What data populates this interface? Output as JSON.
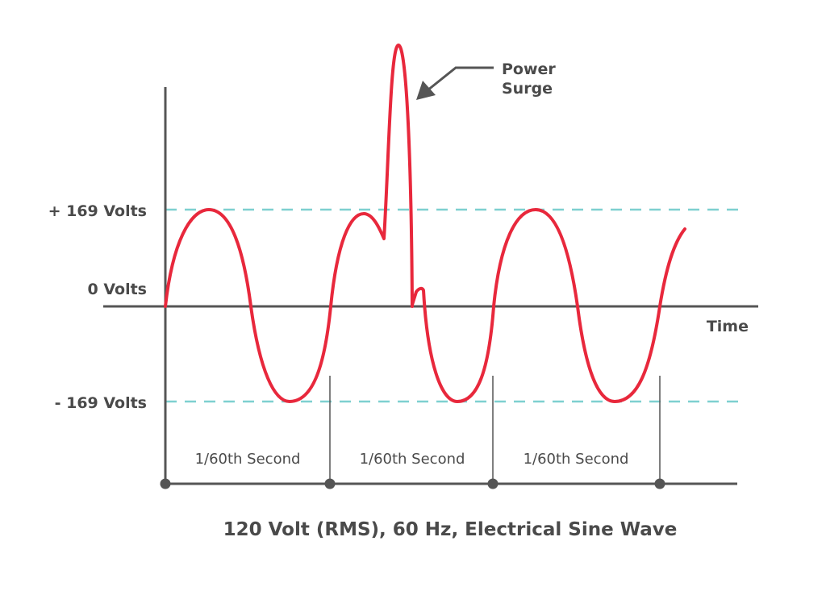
{
  "title": "120 Volt (RMS), 60 Hz, Electrical Sine Wave",
  "levels": {
    "positive_peak": "+ 169 Volts",
    "zero": "0 Volts",
    "negative_peak": "- 169 Volts"
  },
  "time_axis_label": "Time",
  "periods": [
    "1/60th Second",
    "1/60th Second",
    "1/60th Second"
  ],
  "callout": {
    "line1": "Power",
    "line2": "Surge"
  },
  "colors": {
    "wave": "#e8283c",
    "axis": "#555555",
    "reference_lines": "#7ed0d0",
    "text": "#4a4a4a"
  }
}
